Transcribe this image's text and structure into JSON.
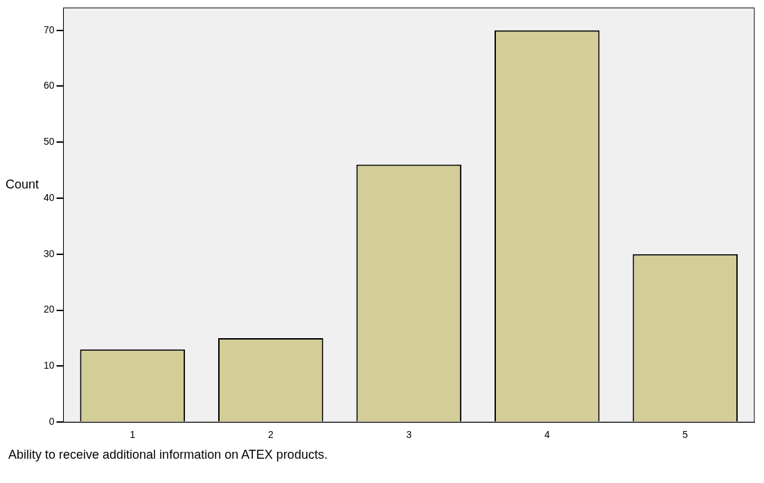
{
  "chart_data": {
    "type": "bar",
    "xlabel": "Ability to receive additional information on ATEX products.",
    "ylabel": "Count",
    "categories": [
      "1",
      "2",
      "3",
      "4",
      "5"
    ],
    "values": [
      13,
      15,
      46,
      70,
      30
    ],
    "color": "#d3cd98",
    "ylim": [
      0,
      74
    ],
    "yticks": [
      0,
      10,
      20,
      30,
      40,
      50,
      60,
      70
    ],
    "grid": false,
    "legend": false
  }
}
